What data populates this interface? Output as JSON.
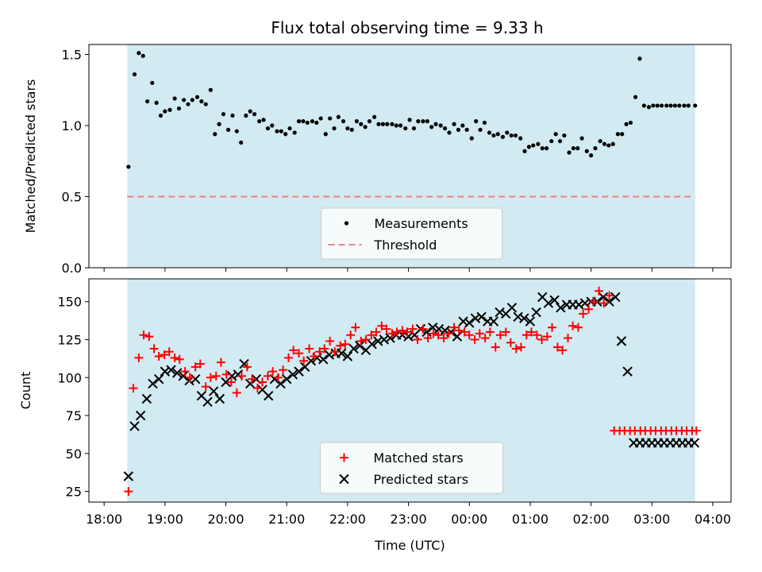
{
  "title": "Flux total observing time = 9.33 h",
  "colors": {
    "shade": "#add8e6",
    "measurement": "#000000",
    "threshold": "#f08080",
    "matched": "#ff0000",
    "predicted": "#000000"
  },
  "chart_data": [
    {
      "type": "scatter",
      "ylabel": "Matched/Predicted stars",
      "ylim": [
        0,
        1.57
      ],
      "yticks": [
        "0.0",
        "0.5",
        "1.0",
        "1.5"
      ],
      "xlim": [
        -0.25,
        10.3
      ],
      "observing_window": [
        0.38,
        9.71
      ],
      "legend": {
        "placement": "lower center",
        "entries": [
          "Measurements",
          "Threshold"
        ]
      },
      "threshold": 0.5,
      "series": [
        {
          "name": "Measurements",
          "x": [
            0.4,
            0.5,
            0.57,
            0.64,
            0.71,
            0.79,
            0.86,
            0.93,
            1.0,
            1.08,
            1.16,
            1.23,
            1.31,
            1.38,
            1.45,
            1.53,
            1.6,
            1.67,
            1.75,
            1.82,
            1.89,
            1.96,
            2.04,
            2.11,
            2.18,
            2.25,
            2.33,
            2.4,
            2.47,
            2.55,
            2.62,
            2.69,
            2.76,
            2.84,
            2.91,
            2.98,
            3.05,
            3.13,
            3.2,
            3.27,
            3.34,
            3.42,
            3.49,
            3.56,
            3.64,
            3.71,
            3.78,
            3.85,
            3.93,
            4.0,
            4.07,
            4.15,
            4.22,
            4.29,
            4.36,
            4.44,
            4.51,
            4.58,
            4.65,
            4.73,
            4.8,
            4.87,
            4.95,
            5.02,
            5.09,
            5.16,
            5.24,
            5.31,
            5.38,
            5.45,
            5.53,
            5.6,
            5.67,
            5.75,
            5.82,
            5.89,
            5.96,
            6.04,
            6.11,
            6.18,
            6.25,
            6.33,
            6.4,
            6.47,
            6.55,
            6.62,
            6.69,
            6.76,
            6.84,
            6.91,
            6.98,
            7.05,
            7.13,
            7.2,
            7.27,
            7.35,
            7.42,
            7.49,
            7.56,
            7.64,
            7.71,
            7.78,
            7.85,
            7.93,
            8.0,
            8.07,
            8.15,
            8.22,
            8.29,
            8.36,
            8.44,
            8.51,
            8.58,
            8.65,
            8.73,
            8.8,
            8.87,
            8.95,
            9.02,
            9.09,
            9.16,
            9.24,
            9.31,
            9.38,
            9.45,
            9.53,
            9.6,
            9.71
          ],
          "y": [
            0.71,
            1.36,
            1.51,
            1.49,
            1.17,
            1.3,
            1.16,
            1.07,
            1.1,
            1.11,
            1.19,
            1.12,
            1.18,
            1.15,
            1.18,
            1.2,
            1.17,
            1.15,
            1.25,
            0.94,
            1.01,
            1.08,
            0.97,
            1.07,
            0.96,
            0.88,
            1.07,
            1.1,
            1.08,
            1.03,
            1.04,
            0.98,
            1.0,
            0.96,
            0.96,
            0.94,
            0.98,
            0.95,
            1.03,
            1.03,
            1.02,
            1.03,
            1.02,
            1.05,
            0.94,
            1.05,
            0.98,
            1.06,
            1.03,
            0.98,
            0.97,
            1.03,
            1.01,
            0.99,
            1.03,
            1.06,
            1.01,
            1.01,
            1.01,
            1.01,
            1.0,
            1.0,
            0.98,
            1.04,
            0.98,
            1.03,
            1.03,
            1.03,
            0.99,
            1.01,
            1.0,
            0.98,
            0.95,
            1.01,
            0.97,
            1.0,
            0.97,
            0.91,
            1.03,
            0.97,
            1.02,
            0.95,
            0.93,
            0.94,
            0.92,
            0.95,
            0.93,
            0.93,
            0.91,
            0.82,
            0.85,
            0.86,
            0.87,
            0.84,
            0.84,
            0.89,
            0.94,
            0.89,
            0.93,
            0.81,
            0.84,
            0.84,
            0.91,
            0.82,
            0.79,
            0.84,
            0.89,
            0.87,
            0.86,
            0.87,
            0.94,
            0.94,
            1.01,
            1.02,
            1.2,
            1.47,
            1.14,
            1.13,
            1.14,
            1.14,
            1.14,
            1.14,
            1.14,
            1.14,
            1.14,
            1.14,
            1.14,
            1.14
          ]
        }
      ]
    },
    {
      "type": "scatter",
      "xlabel": "Time (UTC)",
      "ylabel": "Count",
      "ylim": [
        18,
        165
      ],
      "yticks": [
        "25",
        "50",
        "75",
        "100",
        "125",
        "150"
      ],
      "xlim": [
        -0.25,
        10.3
      ],
      "xticks": [
        "18:00",
        "19:00",
        "20:00",
        "21:00",
        "22:00",
        "23:00",
        "00:00",
        "01:00",
        "02:00",
        "03:00",
        "04:00"
      ],
      "observing_window": [
        0.38,
        9.71
      ],
      "legend": {
        "placement": "lower center",
        "entries": [
          "Matched stars",
          "Predicted stars"
        ]
      },
      "series": [
        {
          "name": "Matched stars",
          "x": [
            0.4,
            0.48,
            0.57,
            0.65,
            0.74,
            0.82,
            0.9,
            0.99,
            1.07,
            1.16,
            1.24,
            1.33,
            1.41,
            1.5,
            1.58,
            1.67,
            1.75,
            1.84,
            1.92,
            2.01,
            2.09,
            2.18,
            2.26,
            2.35,
            2.43,
            2.52,
            2.6,
            2.69,
            2.77,
            2.86,
            2.94,
            3.03,
            3.11,
            3.2,
            3.28,
            3.37,
            3.45,
            3.54,
            3.62,
            3.71,
            3.79,
            3.88,
            3.96,
            4.05,
            4.13,
            4.22,
            4.3,
            4.39,
            4.47,
            4.56,
            4.64,
            4.73,
            4.81,
            4.9,
            4.98,
            5.07,
            5.15,
            5.24,
            5.32,
            5.41,
            5.49,
            5.58,
            5.66,
            5.75,
            5.83,
            5.92,
            6.0,
            6.09,
            6.17,
            6.26,
            6.34,
            6.43,
            6.51,
            6.6,
            6.68,
            6.77,
            6.85,
            6.94,
            7.02,
            7.11,
            7.19,
            7.28,
            7.36,
            7.45,
            7.53,
            7.62,
            7.7,
            7.79,
            7.87,
            7.96,
            8.04,
            8.13,
            8.21,
            8.3,
            8.38,
            8.47,
            8.55,
            8.64,
            8.72,
            8.81,
            8.89,
            8.98,
            9.06,
            9.15,
            9.23,
            9.32,
            9.4,
            9.49,
            9.57,
            9.66,
            9.73
          ],
          "y": [
            25,
            93,
            113,
            128,
            127,
            119,
            114,
            115,
            117,
            113,
            112,
            104,
            100,
            107,
            109,
            94,
            100,
            101,
            110,
            102,
            97,
            90,
            101,
            107,
            99,
            93,
            97,
            101,
            104,
            100,
            105,
            113,
            118,
            116,
            111,
            119,
            114,
            117,
            119,
            124,
            117,
            121,
            122,
            128,
            133,
            124,
            125,
            128,
            130,
            134,
            132,
            129,
            130,
            131,
            130,
            132,
            125,
            132,
            126,
            129,
            128,
            126,
            129,
            133,
            131,
            130,
            128,
            125,
            129,
            126,
            130,
            120,
            128,
            130,
            123,
            119,
            120,
            128,
            130,
            128,
            125,
            127,
            133,
            120,
            118,
            126,
            134,
            133,
            142,
            145,
            150,
            157,
            149,
            154,
            65,
            65,
            65,
            65,
            65,
            65,
            65,
            65,
            65,
            65,
            65,
            65,
            65,
            65,
            65,
            65,
            65
          ]
        },
        {
          "name": "Predicted stars",
          "x": [
            0.4,
            0.5,
            0.6,
            0.7,
            0.8,
            0.9,
            1.0,
            1.1,
            1.2,
            1.3,
            1.4,
            1.5,
            1.6,
            1.7,
            1.8,
            1.9,
            2.0,
            2.1,
            2.2,
            2.3,
            2.4,
            2.5,
            2.6,
            2.7,
            2.8,
            2.9,
            3.0,
            3.1,
            3.2,
            3.3,
            3.4,
            3.5,
            3.6,
            3.7,
            3.8,
            3.9,
            4.0,
            4.1,
            4.2,
            4.3,
            4.4,
            4.5,
            4.6,
            4.7,
            4.8,
            4.9,
            5.0,
            5.1,
            5.2,
            5.3,
            5.4,
            5.5,
            5.6,
            5.7,
            5.8,
            5.9,
            6.0,
            6.1,
            6.2,
            6.3,
            6.4,
            6.5,
            6.6,
            6.7,
            6.8,
            6.9,
            7.0,
            7.1,
            7.2,
            7.3,
            7.4,
            7.5,
            7.6,
            7.7,
            7.8,
            7.9,
            8.0,
            8.1,
            8.2,
            8.3,
            8.4,
            8.5,
            8.6,
            8.7,
            8.8,
            8.9,
            9.0,
            9.1,
            9.2,
            9.3,
            9.4,
            9.5,
            9.6,
            9.7
          ],
          "y": [
            35,
            68,
            75,
            86,
            96,
            99,
            104,
            105,
            103,
            101,
            98,
            99,
            88,
            84,
            91,
            86,
            97,
            101,
            102,
            109,
            96,
            99,
            92,
            88,
            99,
            96,
            99,
            102,
            104,
            107,
            111,
            113,
            112,
            115,
            116,
            116,
            114,
            119,
            121,
            118,
            122,
            124,
            125,
            126,
            128,
            128,
            127,
            128,
            132,
            130,
            133,
            132,
            131,
            130,
            127,
            137,
            136,
            139,
            140,
            137,
            137,
            143,
            142,
            146,
            140,
            139,
            137,
            143,
            153,
            149,
            151,
            146,
            148,
            148,
            148,
            149,
            150,
            150,
            153,
            150,
            153,
            124,
            104,
            57,
            57,
            57,
            57,
            57,
            57,
            57,
            57,
            57,
            57,
            57
          ]
        }
      ]
    }
  ]
}
